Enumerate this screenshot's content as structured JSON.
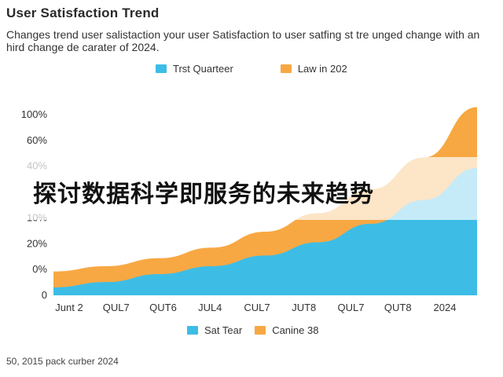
{
  "chart_data": {
    "type": "area",
    "title": "User Satisfaction Trend",
    "subtitle": "Changes trend user salistaction your user Satisfaction to user satfing st tre unged change with an hird change de carater of 2024.",
    "categories": [
      "Junt 2",
      "QUL7",
      "QUT6",
      "JUL4",
      "CUL7",
      "JUT8",
      "QUL7",
      "QUT8",
      "2024"
    ],
    "y_tick_labels": [
      "0",
      "0%",
      "20%",
      "10%",
      "2",
      "40%",
      "60%",
      "100%"
    ],
    "series": [
      {
        "name": "Trst Quarteer",
        "color": "#3dbde6",
        "values": [
          3,
          5,
          8,
          11,
          15,
          20,
          27,
          36,
          48
        ]
      },
      {
        "name": "Law in 202",
        "color": "#f7a843",
        "values": [
          9,
          11,
          14,
          18,
          24,
          31,
          40,
          52,
          71
        ]
      }
    ],
    "ylim": [
      0,
      72
    ],
    "grid": false,
    "legend_top": [
      "Trst Quarteer",
      "Law in 202"
    ],
    "legend_bottom": [
      "Sat Tear",
      "Canine 38"
    ],
    "overlay_text": "探讨数据科学即服务的未来趋势",
    "footer": "50, 2015 pack curber 2024"
  }
}
